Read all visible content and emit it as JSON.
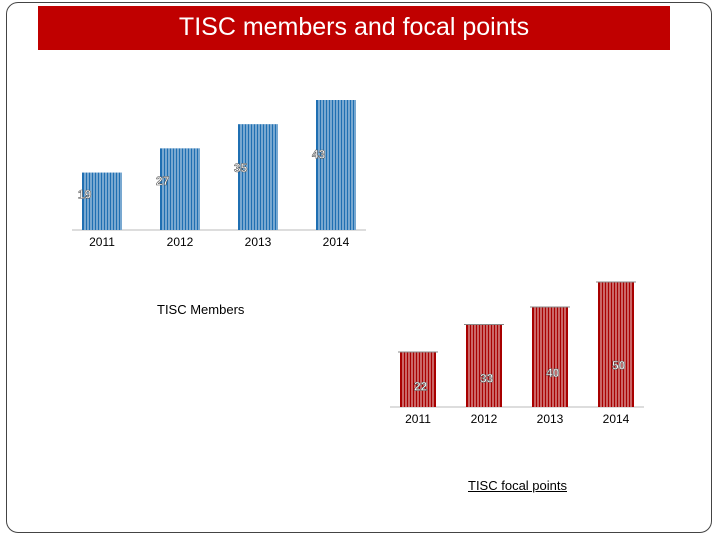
{
  "slide": {
    "title": "TISC members and focal points"
  },
  "colors": {
    "title_bg": "#c00000",
    "members_bar": "#1f6fb2",
    "focal_bar": "#a80000"
  },
  "chart_data": [
    {
      "type": "bar",
      "title": "TISC Members",
      "categories": [
        "2011",
        "2012",
        "2013",
        "2014"
      ],
      "values": [
        19,
        27,
        35,
        43
      ],
      "data_labels": [
        "19",
        "27",
        "35",
        "43"
      ],
      "xlabel": "",
      "ylabel": "",
      "grid": false,
      "legend": "none"
    },
    {
      "type": "bar",
      "title": "TISC focal points",
      "categories": [
        "2011",
        "2012",
        "2013",
        "2014"
      ],
      "values": [
        22,
        33,
        40,
        50
      ],
      "data_labels": [
        "22",
        "33",
        "40",
        "50"
      ],
      "xlabel": "",
      "ylabel": "",
      "grid": false,
      "legend": "none"
    }
  ]
}
